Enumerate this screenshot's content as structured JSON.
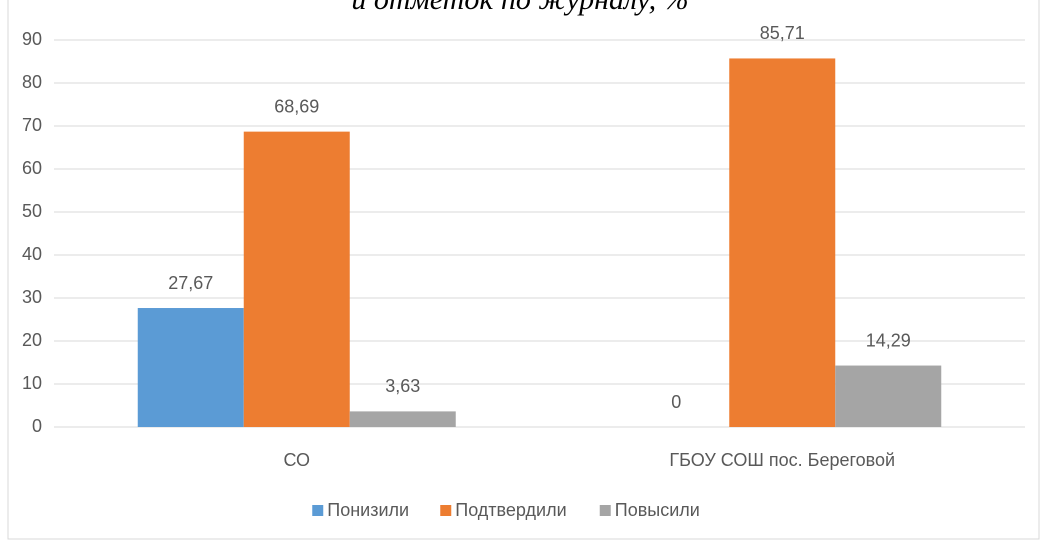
{
  "chart_data": {
    "type": "bar",
    "title": "и отметок по журналу, %",
    "categories": [
      "СО",
      "ГБОУ СОШ пос. Береговой"
    ],
    "series": [
      {
        "name": "Понизили",
        "color": "#5b9bd5",
        "values": [
          27.67,
          0
        ],
        "value_labels": [
          "27,67",
          "0"
        ]
      },
      {
        "name": "Подтвердили",
        "color": "#ed7d31",
        "values": [
          68.69,
          85.71
        ],
        "value_labels": [
          "68,69",
          "85,71"
        ]
      },
      {
        "name": "Повысили",
        "color": "#a5a5a5",
        "values": [
          3.63,
          14.29
        ],
        "value_labels": [
          "3,63",
          "14,29"
        ]
      }
    ],
    "ylim": [
      0,
      90
    ],
    "yticks": [
      0,
      10,
      20,
      30,
      40,
      50,
      60,
      70,
      80,
      90
    ],
    "grid": true,
    "legend": "bottom"
  }
}
